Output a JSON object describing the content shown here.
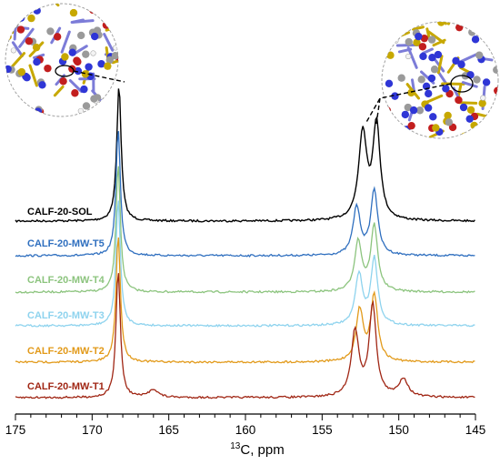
{
  "chart_data": {
    "type": "line",
    "title": "",
    "xlabel_sup": "13",
    "xlabel_main": "C, ppm",
    "xlim": [
      175,
      145
    ],
    "x_reversed": true,
    "xticks": [
      175,
      170,
      165,
      160,
      155,
      150,
      145
    ],
    "ylabel": "",
    "grid": false,
    "legend": "inline labels left of each trace",
    "peaks_ppm": [
      168.2,
      152.3,
      151.5
    ],
    "series": [
      {
        "name": "CALF-20-SOL",
        "color": "#000000",
        "peaks": [
          {
            "center": 168.25,
            "height": 150,
            "width": 0.17
          },
          {
            "center": 152.35,
            "height": 96,
            "width": 0.32
          },
          {
            "center": 151.45,
            "height": 105,
            "width": 0.28
          }
        ]
      },
      {
        "name": "CALF-20-MW-T5",
        "color": "#2f6fbf",
        "peaks": [
          {
            "center": 168.3,
            "height": 140,
            "width": 0.17
          },
          {
            "center": 152.75,
            "height": 53,
            "width": 0.28
          },
          {
            "center": 151.6,
            "height": 72,
            "width": 0.27
          }
        ]
      },
      {
        "name": "CALF-20-MW-T4",
        "color": "#8cc47e",
        "peaks": [
          {
            "center": 168.3,
            "height": 140,
            "width": 0.17
          },
          {
            "center": 152.65,
            "height": 55,
            "width": 0.28
          },
          {
            "center": 151.6,
            "height": 72,
            "width": 0.27
          }
        ]
      },
      {
        "name": "CALF-20-MW-T3",
        "color": "#8ed3ee",
        "peaks": [
          {
            "center": 168.3,
            "height": 140,
            "width": 0.17
          },
          {
            "center": 152.6,
            "height": 56,
            "width": 0.28
          },
          {
            "center": 151.6,
            "height": 73,
            "width": 0.27
          }
        ]
      },
      {
        "name": "CALF-20-MW-T2",
        "color": "#e29a1a",
        "peaks": [
          {
            "center": 168.3,
            "height": 140,
            "width": 0.17
          },
          {
            "center": 152.55,
            "height": 56,
            "width": 0.28
          },
          {
            "center": 151.6,
            "height": 73,
            "width": 0.27
          }
        ]
      },
      {
        "name": "CALF-20-MW-T1",
        "color": "#a02614",
        "peaks": [
          {
            "center": 168.3,
            "height": 140,
            "width": 0.17
          },
          {
            "center": 166.0,
            "height": 9,
            "width": 0.35
          },
          {
            "center": 152.85,
            "height": 72,
            "width": 0.3
          },
          {
            "center": 151.7,
            "height": 100,
            "width": 0.28
          },
          {
            "center": 149.7,
            "height": 20,
            "width": 0.35
          }
        ]
      }
    ]
  },
  "palette": {
    "carbon": "#9a9a9a",
    "nitrogen": "#2f36d6",
    "oxygen": "#c21e1e",
    "zinc": "#c7a800",
    "hydrogen": "#f4f4f4"
  },
  "insets": [
    {
      "name": "left-structure-inset",
      "points_to_ppm": 168.2
    },
    {
      "name": "right-structure-inset",
      "points_to_ppm": [
        152.3,
        151.5
      ]
    }
  ]
}
